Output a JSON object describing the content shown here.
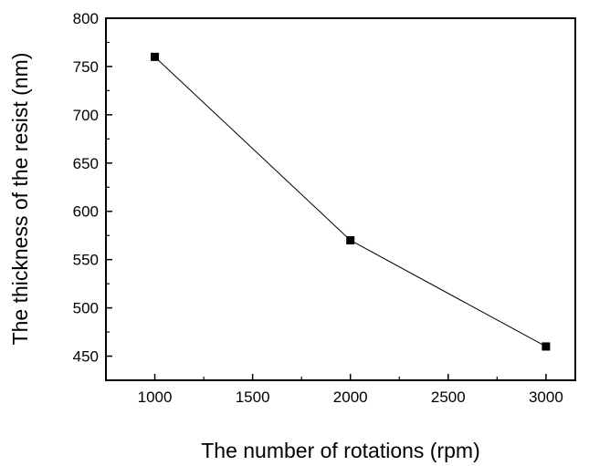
{
  "chart_data": {
    "type": "line",
    "title": "",
    "xlabel": "The number of rotations (rpm)",
    "ylabel": "The thickness of the resist (nm)",
    "x": [
      1000,
      2000,
      3000
    ],
    "series": [
      {
        "values": [
          760,
          570,
          460
        ],
        "marker": "square",
        "color": "#000000"
      }
    ],
    "xlim": [
      750,
      3150
    ],
    "ylim": [
      425,
      800
    ],
    "xticks": [
      1000,
      1500,
      2000,
      2500,
      3000
    ],
    "xtick_labels": [
      "1000",
      "1500",
      "2000",
      "2500",
      "3000"
    ],
    "yticks": [
      450,
      500,
      550,
      600,
      650,
      700,
      750,
      800
    ],
    "ytick_labels": [
      "450",
      "500",
      "550",
      "600",
      "650",
      "700",
      "750",
      "800"
    ],
    "grid": false,
    "legend": "none"
  }
}
